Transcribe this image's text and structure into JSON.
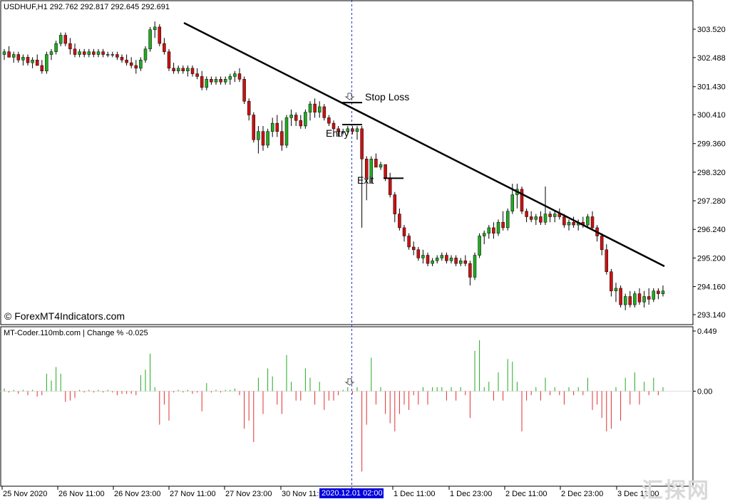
{
  "main": {
    "symbol_header": "USDHUF,H1  292.762 292.817 292.645 292.691",
    "copyright": "© ForexMT4Indicators.com",
    "price_ticks": [
      "303.520",
      "302.488",
      "301.430",
      "300.410",
      "299.360",
      "298.320",
      "297.280",
      "296.240",
      "295.200",
      "294.160",
      "293.140"
    ],
    "annotations": {
      "stop_loss": "Stop Loss",
      "entry": "Entry",
      "exit": "Exit"
    }
  },
  "sub": {
    "header": "MT-Coder.110mb.com | Change % -0.025",
    "ticks": [
      "0.449",
      "0.00"
    ]
  },
  "time_axis": {
    "labels": [
      "25 Nov 2020",
      "26 Nov 11:00",
      "26 Nov 23:00",
      "27 Nov 11:00",
      "27 Nov 23:00",
      "30 Nov 11:00",
      "1 Dec 11:00",
      "1 Dec 23:00",
      "2 Dec 11:00",
      "2 Dec 23:00",
      "3 Dec 11:00"
    ],
    "highlight_label": "2020.12.01 02:00"
  },
  "watermark": "汇探网",
  "colors": {
    "bull": "#22aa22",
    "bear": "#cc1111",
    "trend": "#000000",
    "crosshair": "#2233cc",
    "highlight_bg": "#0000dd"
  },
  "chart_data": [
    {
      "type": "candlestick",
      "symbol": "USDHUF",
      "timeframe": "H1",
      "ohlc_header": {
        "open": 292.762,
        "high": 292.817,
        "low": 292.645,
        "close": 292.691
      },
      "x_range": [
        "25 Nov 2020",
        "3 Dec 2020"
      ],
      "ylim": [
        293.14,
        303.52
      ],
      "trendline": {
        "from": {
          "time": "27 Nov 2020 ~06:00",
          "price": 303.75
        },
        "to": {
          "time": "3 Dec 2020 ~17:00",
          "price": 294.9
        }
      },
      "vertical_marker": "2020.12.01 02:00",
      "levels": {
        "stop_loss": 300.85,
        "entry": 300.05,
        "exit": 298.1
      },
      "candles": [
        [
          302.6,
          302.8,
          302.4,
          302.7
        ],
        [
          302.7,
          302.9,
          302.5,
          302.5
        ],
        [
          302.5,
          302.7,
          302.3,
          302.6
        ],
        [
          302.6,
          302.7,
          302.3,
          302.4
        ],
        [
          302.4,
          302.6,
          302.2,
          302.5
        ],
        [
          302.5,
          302.6,
          302.2,
          302.3
        ],
        [
          302.3,
          302.5,
          302.1,
          302.4
        ],
        [
          302.4,
          302.6,
          302.2,
          302.2
        ],
        [
          302.2,
          302.4,
          301.9,
          302.0
        ],
        [
          302.0,
          302.7,
          301.9,
          302.6
        ],
        [
          302.6,
          302.8,
          302.4,
          302.7
        ],
        [
          302.7,
          303.1,
          302.6,
          303.0
        ],
        [
          303.0,
          303.4,
          302.9,
          303.3
        ],
        [
          303.3,
          303.4,
          302.9,
          303.0
        ],
        [
          303.0,
          303.2,
          302.6,
          302.8
        ],
        [
          302.8,
          303.0,
          302.5,
          302.6
        ],
        [
          302.6,
          302.8,
          302.5,
          302.7
        ],
        [
          302.7,
          302.8,
          302.5,
          302.6
        ],
        [
          302.6,
          302.8,
          302.5,
          302.7
        ],
        [
          302.7,
          302.8,
          302.5,
          302.6
        ],
        [
          302.6,
          302.8,
          302.5,
          302.7
        ],
        [
          302.7,
          302.8,
          302.5,
          302.6
        ],
        [
          302.6,
          302.7,
          302.5,
          302.6
        ],
        [
          302.6,
          302.7,
          302.5,
          302.6
        ],
        [
          302.6,
          302.7,
          302.4,
          302.5
        ],
        [
          302.5,
          302.6,
          302.3,
          302.4
        ],
        [
          302.4,
          302.6,
          302.2,
          302.3
        ],
        [
          302.3,
          302.5,
          302.1,
          302.2
        ],
        [
          302.2,
          302.4,
          301.9,
          302.1
        ],
        [
          302.1,
          302.5,
          302.0,
          302.4
        ],
        [
          302.4,
          302.9,
          302.3,
          302.8
        ],
        [
          302.8,
          303.6,
          302.7,
          303.5
        ],
        [
          303.5,
          303.8,
          303.2,
          303.6
        ],
        [
          303.6,
          303.7,
          302.9,
          303.0
        ],
        [
          303.0,
          303.2,
          302.6,
          302.7
        ],
        [
          302.7,
          302.8,
          302.0,
          302.1
        ],
        [
          302.1,
          302.3,
          301.9,
          302.0
        ],
        [
          302.0,
          302.2,
          301.9,
          302.1
        ],
        [
          302.1,
          302.2,
          301.9,
          302.0
        ],
        [
          302.0,
          302.2,
          301.8,
          302.1
        ],
        [
          302.1,
          302.2,
          301.8,
          301.9
        ],
        [
          301.9,
          302.1,
          301.7,
          301.8
        ],
        [
          301.8,
          302.0,
          301.3,
          301.4
        ],
        [
          301.4,
          301.8,
          301.3,
          301.7
        ],
        [
          301.7,
          301.8,
          301.5,
          301.6
        ],
        [
          301.6,
          301.8,
          301.5,
          301.7
        ],
        [
          301.7,
          301.8,
          301.5,
          301.6
        ],
        [
          301.6,
          301.8,
          301.5,
          301.7
        ],
        [
          301.7,
          301.9,
          301.5,
          301.8
        ],
        [
          301.8,
          302.0,
          301.6,
          301.9
        ],
        [
          301.9,
          302.1,
          301.6,
          301.7
        ],
        [
          301.7,
          301.8,
          300.8,
          300.9
        ],
        [
          300.9,
          301.0,
          300.2,
          300.4
        ],
        [
          300.4,
          300.5,
          299.4,
          299.5
        ],
        [
          299.5,
          300.0,
          299.0,
          299.8
        ],
        [
          299.8,
          300.0,
          299.1,
          299.3
        ],
        [
          299.3,
          299.9,
          299.2,
          299.8
        ],
        [
          299.8,
          300.3,
          299.6,
          300.1
        ],
        [
          300.1,
          300.4,
          299.6,
          299.8
        ],
        [
          299.8,
          300.2,
          299.1,
          299.3
        ],
        [
          299.3,
          300.4,
          299.2,
          300.3
        ],
        [
          300.3,
          300.6,
          300.0,
          300.4
        ],
        [
          300.4,
          300.5,
          300.0,
          300.2
        ],
        [
          300.2,
          300.4,
          299.9,
          300.0
        ],
        [
          300.0,
          300.6,
          299.9,
          300.5
        ],
        [
          300.5,
          300.9,
          300.2,
          300.8
        ],
        [
          300.8,
          301.0,
          300.3,
          300.5
        ],
        [
          300.5,
          300.9,
          300.3,
          300.7
        ],
        [
          300.7,
          300.8,
          300.2,
          300.3
        ],
        [
          300.3,
          300.4,
          300.0,
          300.1
        ],
        [
          300.1,
          300.2,
          299.8,
          299.9
        ],
        [
          299.9,
          300.0,
          299.6,
          299.8
        ],
        [
          299.8,
          299.9,
          299.7,
          299.8
        ],
        [
          299.8,
          300.0,
          299.7,
          299.9
        ],
        [
          299.9,
          300.0,
          299.7,
          299.8
        ],
        [
          299.8,
          300.0,
          299.5,
          299.9
        ],
        [
          299.9,
          300.0,
          296.3,
          298.8
        ],
        [
          298.8,
          298.9,
          297.3,
          298.1
        ],
        [
          298.1,
          298.9,
          297.9,
          298.8
        ],
        [
          298.8,
          299.0,
          298.5,
          298.5
        ],
        [
          298.5,
          298.7,
          298.4,
          298.6
        ],
        [
          298.6,
          298.6,
          298.0,
          298.1
        ],
        [
          298.1,
          298.3,
          297.4,
          297.5
        ],
        [
          297.5,
          297.6,
          296.5,
          296.8
        ],
        [
          296.8,
          297.0,
          296.2,
          296.3
        ],
        [
          296.3,
          296.4,
          295.8,
          296.0
        ],
        [
          296.0,
          296.1,
          295.5,
          295.6
        ],
        [
          295.6,
          295.8,
          295.3,
          295.5
        ],
        [
          295.5,
          295.6,
          295.1,
          295.2
        ],
        [
          295.2,
          295.5,
          295.0,
          295.3
        ],
        [
          295.3,
          295.4,
          294.9,
          295.0
        ],
        [
          295.0,
          295.2,
          294.9,
          295.1
        ],
        [
          295.1,
          295.3,
          295.0,
          295.2
        ],
        [
          295.2,
          295.4,
          295.1,
          295.3
        ],
        [
          295.3,
          295.4,
          295.0,
          295.1
        ],
        [
          295.1,
          295.3,
          295.0,
          295.2
        ],
        [
          295.2,
          295.3,
          294.9,
          295.0
        ],
        [
          295.0,
          295.2,
          294.9,
          295.1
        ],
        [
          295.1,
          295.3,
          294.9,
          295.0
        ],
        [
          295.0,
          295.1,
          294.2,
          294.5
        ],
        [
          294.5,
          295.4,
          294.4,
          295.3
        ],
        [
          295.3,
          296.1,
          295.2,
          296.0
        ],
        [
          296.0,
          296.2,
          295.7,
          296.1
        ],
        [
          296.1,
          296.4,
          295.9,
          296.3
        ],
        [
          296.3,
          296.5,
          295.9,
          296.1
        ],
        [
          296.1,
          296.6,
          296.0,
          296.5
        ],
        [
          296.5,
          296.9,
          296.2,
          296.3
        ],
        [
          296.3,
          297.0,
          296.2,
          296.9
        ],
        [
          296.9,
          297.9,
          296.8,
          297.5
        ],
        [
          297.5,
          297.9,
          297.0,
          297.7
        ],
        [
          297.7,
          297.8,
          296.8,
          296.9
        ],
        [
          296.9,
          297.0,
          296.5,
          296.7
        ],
        [
          296.7,
          296.9,
          296.5,
          296.6
        ],
        [
          296.6,
          296.8,
          296.4,
          296.7
        ],
        [
          296.7,
          296.9,
          296.4,
          296.5
        ],
        [
          296.5,
          297.8,
          296.4,
          296.8
        ],
        [
          296.8,
          296.9,
          296.5,
          296.7
        ],
        [
          296.7,
          296.9,
          296.5,
          296.8
        ],
        [
          296.8,
          297.0,
          296.6,
          296.7
        ],
        [
          296.7,
          296.8,
          296.3,
          296.4
        ],
        [
          296.4,
          296.6,
          296.2,
          296.5
        ],
        [
          296.5,
          296.7,
          296.3,
          296.4
        ],
        [
          296.4,
          296.6,
          296.2,
          296.5
        ],
        [
          296.5,
          296.7,
          296.3,
          296.4
        ],
        [
          296.4,
          296.8,
          296.3,
          296.7
        ],
        [
          296.7,
          296.9,
          296.2,
          296.3
        ],
        [
          296.3,
          296.4,
          295.8,
          296.0
        ],
        [
          296.0,
          296.1,
          295.3,
          295.5
        ],
        [
          295.5,
          295.7,
          294.6,
          294.7
        ],
        [
          294.7,
          294.8,
          293.8,
          294.0
        ],
        [
          294.0,
          294.3,
          293.6,
          294.1
        ],
        [
          294.1,
          294.2,
          293.4,
          293.5
        ],
        [
          293.5,
          293.9,
          293.3,
          293.8
        ],
        [
          293.8,
          294.0,
          293.4,
          293.5
        ],
        [
          293.5,
          294.0,
          293.4,
          293.9
        ],
        [
          293.9,
          294.1,
          293.5,
          293.6
        ],
        [
          293.6,
          294.0,
          293.4,
          293.8
        ],
        [
          293.8,
          294.1,
          293.5,
          293.7
        ],
        [
          293.7,
          294.1,
          293.6,
          294.0
        ],
        [
          294.0,
          294.1,
          293.7,
          293.9
        ],
        [
          293.9,
          294.2,
          293.8,
          294.0
        ]
      ]
    },
    {
      "type": "bar",
      "title": "MT-Coder.110mb.com | Change %",
      "last_value": -0.025,
      "ylim": [
        -0.65,
        0.449
      ],
      "values": [
        0.02,
        -0.01,
        0.01,
        -0.02,
        0.01,
        -0.03,
        0.01,
        -0.04,
        -0.03,
        0.13,
        0.08,
        0.18,
        0.13,
        -0.08,
        -0.07,
        -0.05,
        0.01,
        -0.01,
        0.01,
        -0.01,
        0.01,
        -0.01,
        0.01,
        -0.01,
        -0.03,
        -0.02,
        -0.02,
        -0.02,
        -0.03,
        0.12,
        0.16,
        0.28,
        0.03,
        -0.25,
        -0.1,
        -0.22,
        -0.01,
        0.01,
        -0.01,
        0.01,
        -0.02,
        -0.01,
        -0.15,
        0.06,
        -0.01,
        0.01,
        -0.01,
        0.01,
        0.01,
        0.02,
        -0.03,
        -0.28,
        -0.22,
        -0.38,
        0.1,
        -0.17,
        0.17,
        0.11,
        -0.1,
        -0.17,
        0.27,
        0.07,
        -0.07,
        -0.07,
        0.17,
        0.1,
        -0.1,
        0.07,
        -0.14,
        -0.07,
        -0.07,
        -0.03,
        0.01,
        0.03,
        -0.02,
        0.03,
        -0.6,
        -0.25,
        0.25,
        -0.1,
        0.03,
        -0.17,
        -0.24,
        -0.3,
        -0.17,
        -0.1,
        -0.14,
        -0.03,
        -0.1,
        0.03,
        -0.1,
        0.03,
        0.03,
        0.03,
        -0.07,
        0.03,
        -0.07,
        0.03,
        -0.03,
        -0.2,
        0.3,
        0.38,
        0.03,
        0.07,
        -0.07,
        0.14,
        -0.07,
        0.24,
        0.22,
        0.07,
        -0.3,
        -0.07,
        -0.03,
        0.03,
        -0.07,
        0.1,
        -0.03,
        0.03,
        -0.03,
        -0.1,
        0.03,
        -0.03,
        0.03,
        -0.03,
        0.1,
        -0.14,
        -0.1,
        -0.2,
        -0.3,
        -0.28,
        0.03,
        -0.22,
        0.1,
        -0.1,
        0.14,
        -0.1,
        0.07,
        -0.03,
        0.1,
        -0.03,
        0.03
      ]
    }
  ]
}
